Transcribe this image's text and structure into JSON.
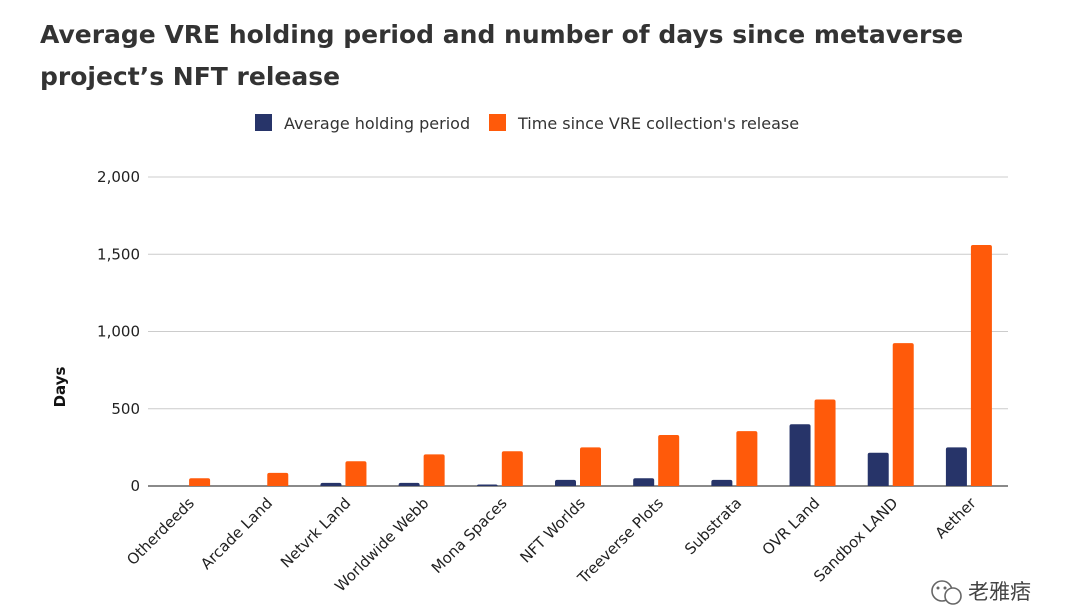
{
  "chart_data": {
    "type": "bar",
    "title": "Average VRE holding period and number of days since metaverse project’s NFT release",
    "xlabel": "",
    "ylabel": "Days",
    "ylim": [
      0,
      2000
    ],
    "yticks": [
      0,
      500,
      1000,
      1500,
      2000
    ],
    "ytick_labels": [
      "0",
      "500",
      "1,000",
      "1,500",
      "2,000"
    ],
    "grid": "horizontal",
    "legend_position": "top",
    "categories": [
      "Otherdeeds",
      "Arcade Land",
      "Netvrk Land",
      "Worldwide Webb",
      "Mona Spaces",
      "NFT Worlds",
      "Treeverse Plots",
      "Substrata",
      "OVR Land",
      "Sandbox LAND",
      "Aether"
    ],
    "series": [
      {
        "name": "Average holding period",
        "color": "#273469",
        "values": [
          0,
          0,
          20,
          20,
          10,
          40,
          50,
          40,
          400,
          215,
          250
        ]
      },
      {
        "name": "Time since VRE collection's release",
        "color": "#FF5A0A",
        "values": [
          50,
          85,
          160,
          205,
          225,
          250,
          330,
          355,
          560,
          925,
          1560
        ]
      }
    ]
  },
  "watermark": {
    "text": "老雅痞",
    "icon": "wechat-icon"
  }
}
